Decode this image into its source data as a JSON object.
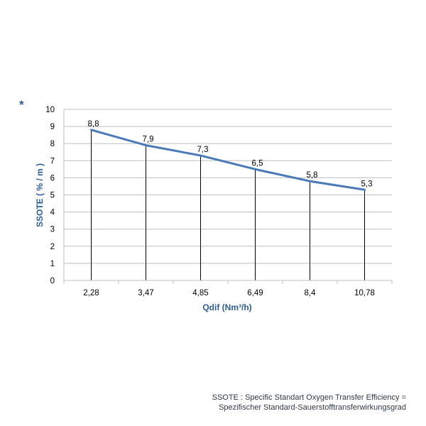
{
  "marker": "*",
  "colors": {
    "line": "#4a7ab8",
    "axis_title": "#2e5c97",
    "grid": "#bfbfbf",
    "drop": "#000000"
  },
  "chart_data": {
    "type": "line",
    "title": "",
    "categories": [
      "2,28",
      "3,47",
      "4,85",
      "6,49",
      "8,4",
      "10,78"
    ],
    "values": [
      8.8,
      7.9,
      7.3,
      6.5,
      5.8,
      5.3
    ],
    "data_labels": [
      "8,8",
      "7,9",
      "7,3",
      "6,5",
      "5,8",
      "5,3"
    ],
    "xlabel": "Qdif (Nm³/h)",
    "ylabel": "SSOTE ( % / m )",
    "ylim": [
      0,
      10
    ],
    "yticks": [
      "0",
      "1",
      "2",
      "3",
      "4",
      "5",
      "6",
      "7",
      "8",
      "9",
      "10"
    ],
    "grid": true,
    "drop_lines": true
  },
  "footnote": {
    "line1": "SSOTE : Specific Standart Oxygen Transfer Efficiency =",
    "line2": "Spezifischer Standard-Sauerstofftransferwirkungsgrad"
  }
}
